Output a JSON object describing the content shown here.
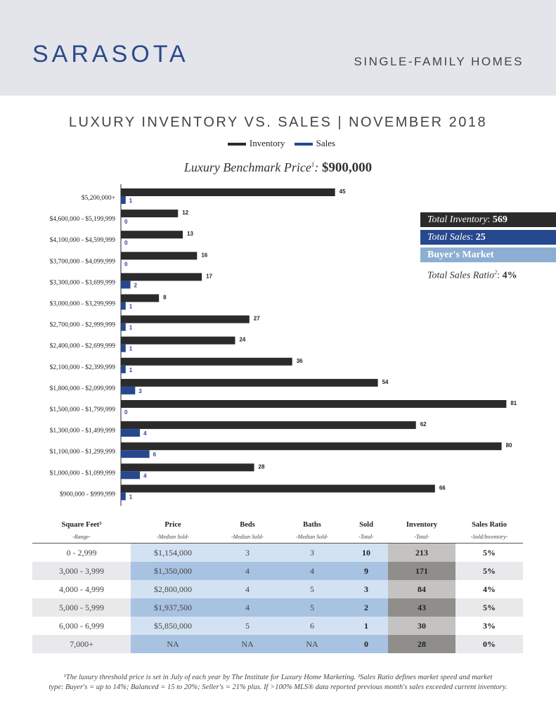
{
  "header": {
    "city": "SARASOTA",
    "subtitle": "SINGLE-FAMILY HOMES"
  },
  "chart_title": "LUXURY INVENTORY VS. SALES | NOVEMBER 2018",
  "legend": {
    "inventory": "Inventory",
    "sales": "Sales"
  },
  "benchmark": {
    "label": "Luxury Benchmark Price",
    "sup": "1",
    "sep": ":",
    "value": "$900,000"
  },
  "colors": {
    "inventory": "#2b2b2b",
    "sales": "#26488f",
    "buyers_market": "#8daed3",
    "header_bg": "#e4e5ea"
  },
  "chart_data": {
    "type": "bar",
    "orientation": "horizontal",
    "categories": [
      "$5,200,000+",
      "$4,600,000 - $5,199,999",
      "$4,100,000 - $4,599,999",
      "$3,700,000 - $4,099,999",
      "$3,300,000 - $3,699,999",
      "$3,000,000 - $3,299,999",
      "$2,700,000 - $2,999,999",
      "$2,400,000 - $2,699,999",
      "$2,100,000 - $2,399,999",
      "$1,800,000 - $2,099,999",
      "$1,500,000 - $1,799,999",
      "$1,300,000 - $1,499,999",
      "$1,100,000 - $1,299,999",
      "$1,000,000 - $1,099,999",
      "$900,000 - $999,999"
    ],
    "series": [
      {
        "name": "Inventory",
        "values": [
          45,
          12,
          13,
          16,
          17,
          8,
          27,
          24,
          36,
          54,
          81,
          62,
          80,
          28,
          66
        ]
      },
      {
        "name": "Sales",
        "values": [
          1,
          0,
          0,
          0,
          2,
          1,
          1,
          1,
          1,
          3,
          0,
          4,
          6,
          4,
          1
        ]
      }
    ],
    "xlim": [
      0,
      81
    ],
    "grid": false,
    "legend": "top-center"
  },
  "stats": {
    "inventory": {
      "label": "Total Inventory",
      "value": "569"
    },
    "sales": {
      "label": "Total Sales",
      "value": "25"
    },
    "market": "Buyer's Market",
    "ratio": {
      "label": "Total Sales Ratio",
      "sup": "2",
      "value": "4%"
    }
  },
  "table": {
    "headers": [
      "Square Feet³",
      "Price",
      "Beds",
      "Baths",
      "Sold",
      "Inventory",
      "Sales Ratio"
    ],
    "subheaders": [
      "-Range-",
      "-Median Sold-",
      "-Median Sold-",
      "-Median Sold-",
      "-Total-",
      "-Total-",
      "-Sold/Inventory-"
    ],
    "rows": [
      [
        "0 - 2,999",
        "$1,154,000",
        "3",
        "3",
        "10",
        "213",
        "5%"
      ],
      [
        "3,000 - 3,999",
        "$1,350,000",
        "4",
        "4",
        "9",
        "171",
        "5%"
      ],
      [
        "4,000 - 4,999",
        "$2,800,000",
        "4",
        "5",
        "3",
        "84",
        "4%"
      ],
      [
        "5,000 - 5,999",
        "$1,937,500",
        "4",
        "5",
        "2",
        "43",
        "5%"
      ],
      [
        "6,000 - 6,999",
        "$5,850,000",
        "5",
        "6",
        "1",
        "30",
        "3%"
      ],
      [
        "7,000+",
        "NA",
        "NA",
        "NA",
        "0",
        "28",
        "0%"
      ]
    ]
  },
  "footnote": {
    "line1": "¹The luxury threshold price is set in July of each year by The Institute for Luxury Home Marketing. ²Sales Ratio defines market speed and market",
    "line2": "type: Buyer's = up to 14%; Balanced = 15 to 20%; Seller's = 21% plus. If >100% MLS® data reported previous month's sales exceeded current inventory."
  }
}
